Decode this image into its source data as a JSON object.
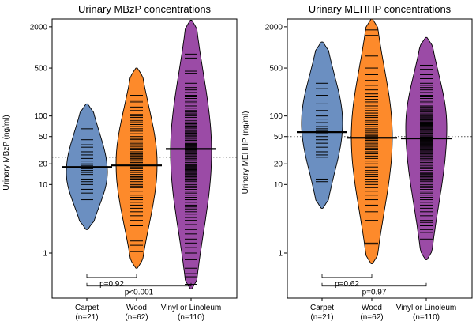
{
  "chart_data": [
    {
      "type": "violin",
      "title": "Urinary MBzP concentrations",
      "ylabel": "Urinary MBzP  (ng/ml)",
      "yscale": "log",
      "ylim": [
        0.22,
        2600
      ],
      "yticks": [
        1,
        10,
        20,
        50,
        100,
        500,
        2000
      ],
      "reference_line": 25,
      "categories": [
        {
          "name": "Carpet",
          "n_label": "(n=21)",
          "color": "#6b8fc1",
          "median": 18,
          "min": 2.2,
          "max": 150,
          "mode": 15
        },
        {
          "name": "Wood",
          "n_label": "(n=62)",
          "color": "#fd8a2b",
          "median": 19,
          "min": 0.6,
          "max": 500,
          "mode": 20
        },
        {
          "name": "Vinyl or Linoleum",
          "n_label": "(n=110)",
          "color": "#9b4ba6",
          "median": 33,
          "min": 0.3,
          "max": 2500,
          "mode": 30
        }
      ],
      "observations": [
        [
          65,
          45,
          38,
          35,
          30,
          27,
          24,
          22,
          20,
          19,
          18,
          17,
          16,
          15,
          14,
          12,
          11,
          10,
          8.5,
          7.5,
          6
        ],
        [
          200,
          170,
          160,
          135,
          120,
          105,
          100,
          95,
          90,
          85,
          80,
          75,
          70,
          65,
          60,
          55,
          50,
          47,
          45,
          42,
          40,
          38,
          36,
          34,
          32,
          30,
          28,
          27,
          26,
          25,
          24,
          23,
          22,
          21,
          20,
          19,
          18,
          17,
          16,
          15,
          14,
          13,
          12.5,
          12,
          11,
          10,
          9.5,
          9,
          8,
          7,
          6.5,
          6,
          5.5,
          5,
          4.5,
          4,
          3.5,
          3,
          2.5,
          1.5,
          1.3,
          1.05
        ],
        [
          800,
          700,
          450,
          420,
          300,
          260,
          240,
          220,
          200,
          190,
          180,
          170,
          160,
          150,
          140,
          130,
          120,
          115,
          110,
          105,
          100,
          95,
          90,
          85,
          80,
          77,
          74,
          71,
          68,
          65,
          62,
          60,
          58,
          56,
          54,
          52,
          50,
          48,
          46,
          44,
          42,
          40,
          39,
          38,
          37,
          36,
          35,
          34,
          33,
          32,
          31,
          30,
          29,
          28,
          27,
          26,
          25,
          24,
          23,
          22,
          21,
          20,
          19.5,
          19,
          18.5,
          18,
          17.5,
          17,
          16.5,
          16,
          15.5,
          15,
          14.5,
          14,
          13.5,
          13,
          12.5,
          12,
          11.5,
          11,
          10.5,
          10,
          9.5,
          9,
          8.5,
          8,
          7.5,
          7,
          6.5,
          6,
          5.5,
          5,
          4.7,
          4.4,
          4,
          3.7,
          3.3,
          3,
          2.6,
          2.2,
          1.9,
          1.6,
          1.4,
          1.2,
          1.0,
          0.8,
          0.6,
          0.5,
          0.45,
          0.35
        ]
      ],
      "comparisons": [
        {
          "label": "p=0.92",
          "from": 0,
          "to": 1,
          "y": 0.44
        },
        {
          "label": "p<0.001",
          "from": 0,
          "to": 2,
          "y": 0.33
        }
      ]
    },
    {
      "type": "violin",
      "title": "Urinary MEHHP concentrations",
      "ylabel": "Urinary MEHHP  (ng/ml)",
      "yscale": "log",
      "ylim": [
        0.22,
        2600
      ],
      "yticks": [
        1,
        10,
        20,
        50,
        100,
        500,
        2000
      ],
      "reference_line": 50,
      "categories": [
        {
          "name": "Carpet",
          "n_label": "(n=21)",
          "color": "#6b8fc1",
          "median": 58,
          "min": 4.5,
          "max": 1200,
          "mode": 80
        },
        {
          "name": "Wood",
          "n_label": "(n=62)",
          "color": "#fd8a2b",
          "median": 48,
          "min": 0.7,
          "max": 2600,
          "mode": 50
        },
        {
          "name": "Vinyl or Linoleum",
          "n_label": "(n=110)",
          "color": "#9b4ba6",
          "median": 47,
          "min": 0.8,
          "max": 1400,
          "mode": 70
        }
      ],
      "observations": [
        [
          300,
          250,
          200,
          150,
          120,
          100,
          90,
          80,
          70,
          65,
          60,
          55,
          50,
          45,
          40,
          35,
          30,
          27,
          25,
          12,
          11
        ],
        [
          1800,
          1500,
          750,
          500,
          400,
          330,
          280,
          240,
          210,
          190,
          175,
          160,
          150,
          140,
          130,
          120,
          110,
          100,
          95,
          90,
          85,
          80,
          75,
          70,
          65,
          60,
          57,
          54,
          52,
          50,
          48,
          46,
          44,
          42,
          40,
          38,
          36,
          34,
          32,
          30,
          28,
          26,
          24,
          22,
          20,
          18,
          16,
          15,
          14,
          13,
          12,
          11,
          10,
          9,
          8,
          7,
          6,
          5,
          4,
          3,
          1.4,
          1.35
        ],
        [
          550,
          480,
          400,
          350,
          300,
          280,
          260,
          240,
          220,
          200,
          190,
          180,
          170,
          160,
          150,
          140,
          135,
          130,
          125,
          120,
          115,
          110,
          105,
          100,
          97,
          94,
          91,
          88,
          85,
          82,
          80,
          78,
          76,
          74,
          72,
          70,
          68,
          66,
          64,
          62,
          60,
          58,
          56,
          54,
          52,
          50,
          49,
          48,
          47,
          46,
          45,
          44,
          43,
          42,
          41,
          40,
          39,
          38,
          37,
          36,
          35,
          34,
          33,
          32,
          31,
          30,
          29,
          28,
          27,
          26,
          25,
          24,
          23,
          22,
          21,
          20,
          19,
          18,
          17,
          16,
          15,
          14.5,
          14,
          13.5,
          13,
          12.5,
          12,
          11.5,
          11,
          10.5,
          10,
          9.5,
          9,
          8.5,
          8,
          7.5,
          7,
          6.5,
          6,
          5.5,
          5,
          4.5,
          4,
          3.5,
          3,
          2.8,
          2.5,
          2.2,
          2,
          1.6
        ]
      ],
      "comparisons": [
        {
          "label": "p=0.62",
          "from": 0,
          "to": 1,
          "y": 0.44
        },
        {
          "label": "p=0.97",
          "from": 0,
          "to": 2,
          "y": 0.33
        }
      ]
    }
  ]
}
